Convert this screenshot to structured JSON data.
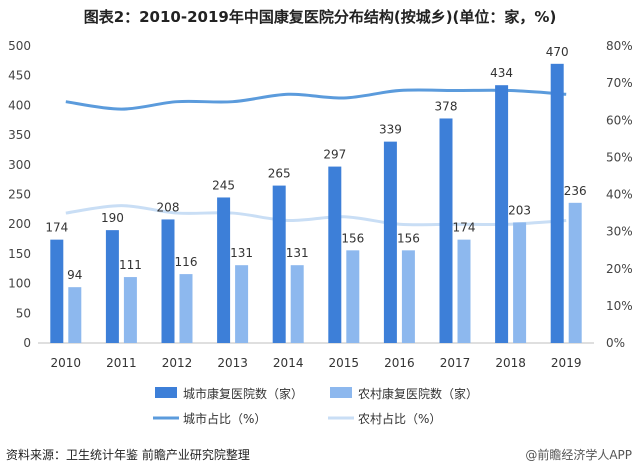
{
  "chart_data": {
    "type": "bar",
    "title": "图表2：2010-2019年中国康复医院分布结构(按城乡)(单位：家，%)",
    "categories": [
      "2010",
      "2011",
      "2012",
      "2013",
      "2014",
      "2015",
      "2016",
      "2017",
      "2018",
      "2019"
    ],
    "series": [
      {
        "name": "城市康复医院数（家）",
        "kind": "bar",
        "axis": "left",
        "color": "#3d7fd8",
        "values": [
          174,
          190,
          208,
          245,
          265,
          297,
          339,
          378,
          434,
          470
        ]
      },
      {
        "name": "农村康复医院数（家）",
        "kind": "bar",
        "axis": "left",
        "color": "#8db8ee",
        "values": [
          94,
          111,
          116,
          131,
          131,
          156,
          156,
          174,
          203,
          236
        ]
      },
      {
        "name": "城市占比（%）",
        "kind": "line",
        "axis": "right",
        "color": "#5b9bdc",
        "values": [
          65,
          63,
          65,
          65,
          67,
          66,
          68,
          68,
          68,
          67
        ]
      },
      {
        "name": "农村占比（%）",
        "kind": "line",
        "axis": "right",
        "color": "#c9def5",
        "values": [
          35,
          37,
          35,
          35,
          33,
          34,
          32,
          32,
          32,
          33
        ]
      }
    ],
    "data_labels_shown": [
      "174",
      "190",
      "208",
      "245",
      "265",
      "297",
      "339",
      "378",
      "434",
      "470",
      "94",
      "111",
      "116",
      "131",
      "131",
      "156",
      "156",
      "174",
      "203",
      "236"
    ],
    "y_left": {
      "min": 0,
      "max": 500,
      "ticks": [
        "0",
        "50",
        "100",
        "150",
        "200",
        "250",
        "300",
        "350",
        "400",
        "450",
        "500"
      ]
    },
    "y_right": {
      "min": 0,
      "max": 80,
      "ticks": [
        "0%",
        "10%",
        "20%",
        "30%",
        "40%",
        "50%",
        "60%",
        "70%",
        "80%"
      ]
    },
    "grid": false,
    "legend_position": "bottom"
  },
  "source_text": "资料来源：卫生统计年鉴 前瞻产业研究院整理",
  "watermark_text": "@前瞻经济学人APP"
}
